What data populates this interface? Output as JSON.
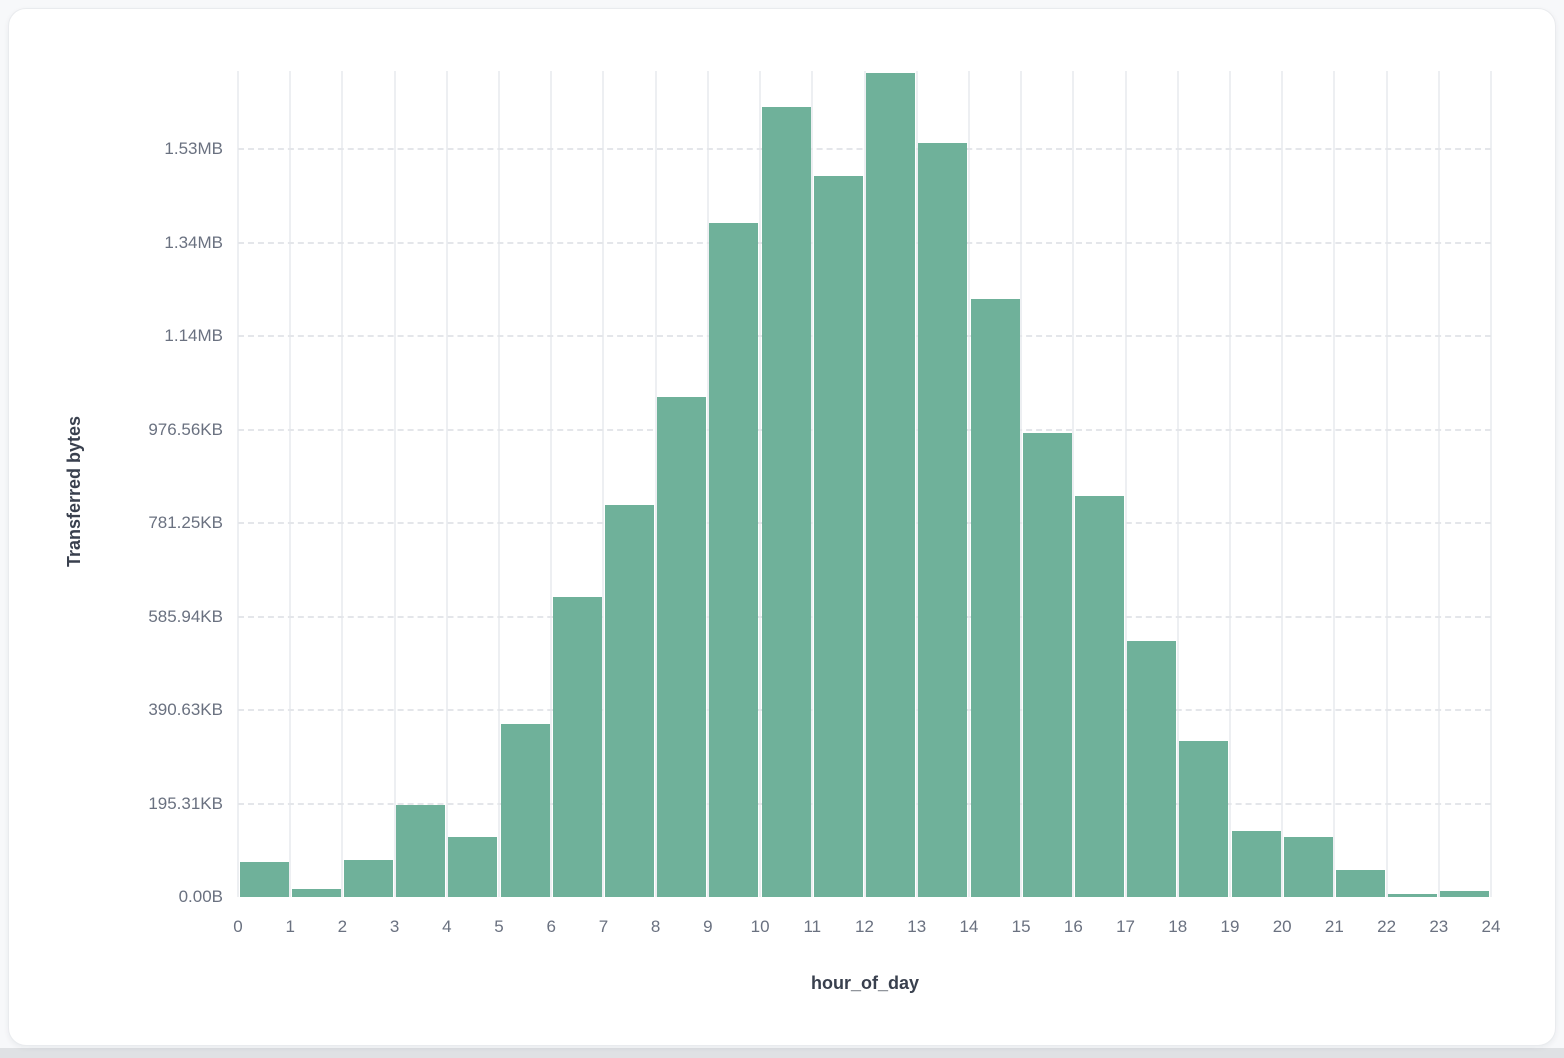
{
  "page": {
    "background": "#f7f8fa",
    "card_background": "#ffffff",
    "bottom_strip_color": "#dfe1e4"
  },
  "chart_data": {
    "type": "bar",
    "title": "",
    "xlabel": "hour_of_day",
    "ylabel": "Transferred bytes",
    "bar_color": "#6FB19A",
    "grid": true,
    "legend": "none",
    "xlim": [
      0,
      24
    ],
    "ylim_bytes": [
      0,
      1768000
    ],
    "bin_width_hours": 1,
    "x_tick_labels": [
      "0",
      "1",
      "2",
      "3",
      "4",
      "5",
      "6",
      "7",
      "8",
      "9",
      "10",
      "11",
      "12",
      "13",
      "14",
      "15",
      "16",
      "17",
      "18",
      "19",
      "20",
      "21",
      "22",
      "23",
      "24"
    ],
    "y_ticks": [
      {
        "label": "0.00B",
        "bytes": 0
      },
      {
        "label": "195.31KB",
        "bytes": 200000
      },
      {
        "label": "390.63KB",
        "bytes": 400000
      },
      {
        "label": "585.94KB",
        "bytes": 600000
      },
      {
        "label": "781.25KB",
        "bytes": 800000
      },
      {
        "label": "976.56KB",
        "bytes": 1000000
      },
      {
        "label": "1.14MB",
        "bytes": 1200000
      },
      {
        "label": "1.34MB",
        "bytes": 1400000
      },
      {
        "label": "1.53MB",
        "bytes": 1600000
      }
    ],
    "bins_start_hour": [
      0,
      1,
      2,
      3,
      4,
      5,
      6,
      7,
      8,
      9,
      10,
      11,
      12,
      13,
      14,
      15,
      16,
      17,
      18,
      19,
      20,
      21,
      22,
      23
    ],
    "values_bytes": [
      75000,
      17000,
      79000,
      197000,
      128000,
      370000,
      642000,
      839000,
      1070000,
      1443000,
      1690000,
      1543000,
      1764000,
      1614000,
      1280000,
      994000,
      858000,
      548000,
      334000,
      142000,
      128000,
      58000,
      6500,
      13500
    ]
  }
}
